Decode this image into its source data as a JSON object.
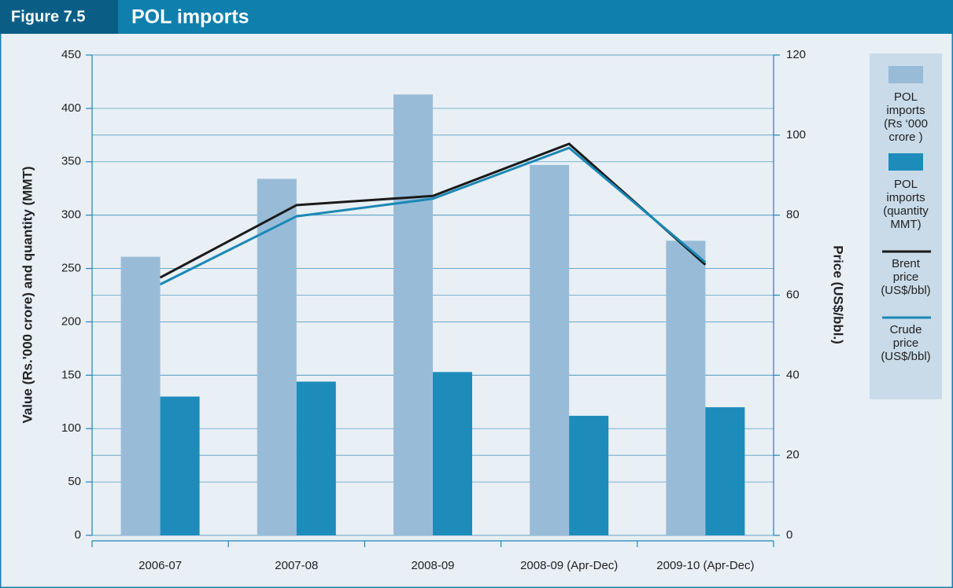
{
  "chart_data": {
    "type": "bar-line",
    "figure_label": "Figure 7.5",
    "title": "POL imports",
    "categories": [
      "2006-07",
      "2007-08",
      "2008-09",
      "2008-09 (Apr-Dec)",
      "2009-10 (Apr-Dec)"
    ],
    "y_label": "Value (Rs.'000 crore) and quantity (MMT)",
    "y2_label": "Price (US$/bbl.)",
    "ylim": [
      0,
      450
    ],
    "yticks": [
      0,
      50,
      100,
      150,
      200,
      250,
      300,
      350,
      400,
      450
    ],
    "y2lim": [
      0,
      120
    ],
    "y2ticks": [
      0,
      20,
      40,
      60,
      80,
      100,
      120
    ],
    "grid": true,
    "legend": "right",
    "series": [
      {
        "name": "POL imports (Rs ‘000 crore )",
        "kind": "bar",
        "color": "#98bcd8",
        "values": [
          261,
          334,
          413,
          347,
          276
        ]
      },
      {
        "name": "POL imports (quantity MMT)",
        "kind": "bar",
        "color": "#1e8cba",
        "values": [
          130,
          144,
          153,
          112,
          120
        ]
      },
      {
        "name": "Brent price (US$/bbl)",
        "kind": "line",
        "axis": "y2",
        "color": "#1a1a1a",
        "values": [
          64.4,
          82.5,
          84.8,
          97.8,
          67.6
        ]
      },
      {
        "name": "Crude price (US$/bbl)",
        "kind": "line",
        "axis": "y2",
        "color": "#1a88b5",
        "values": [
          62.7,
          79.7,
          84.1,
          96.8,
          68.2
        ]
      }
    ]
  }
}
